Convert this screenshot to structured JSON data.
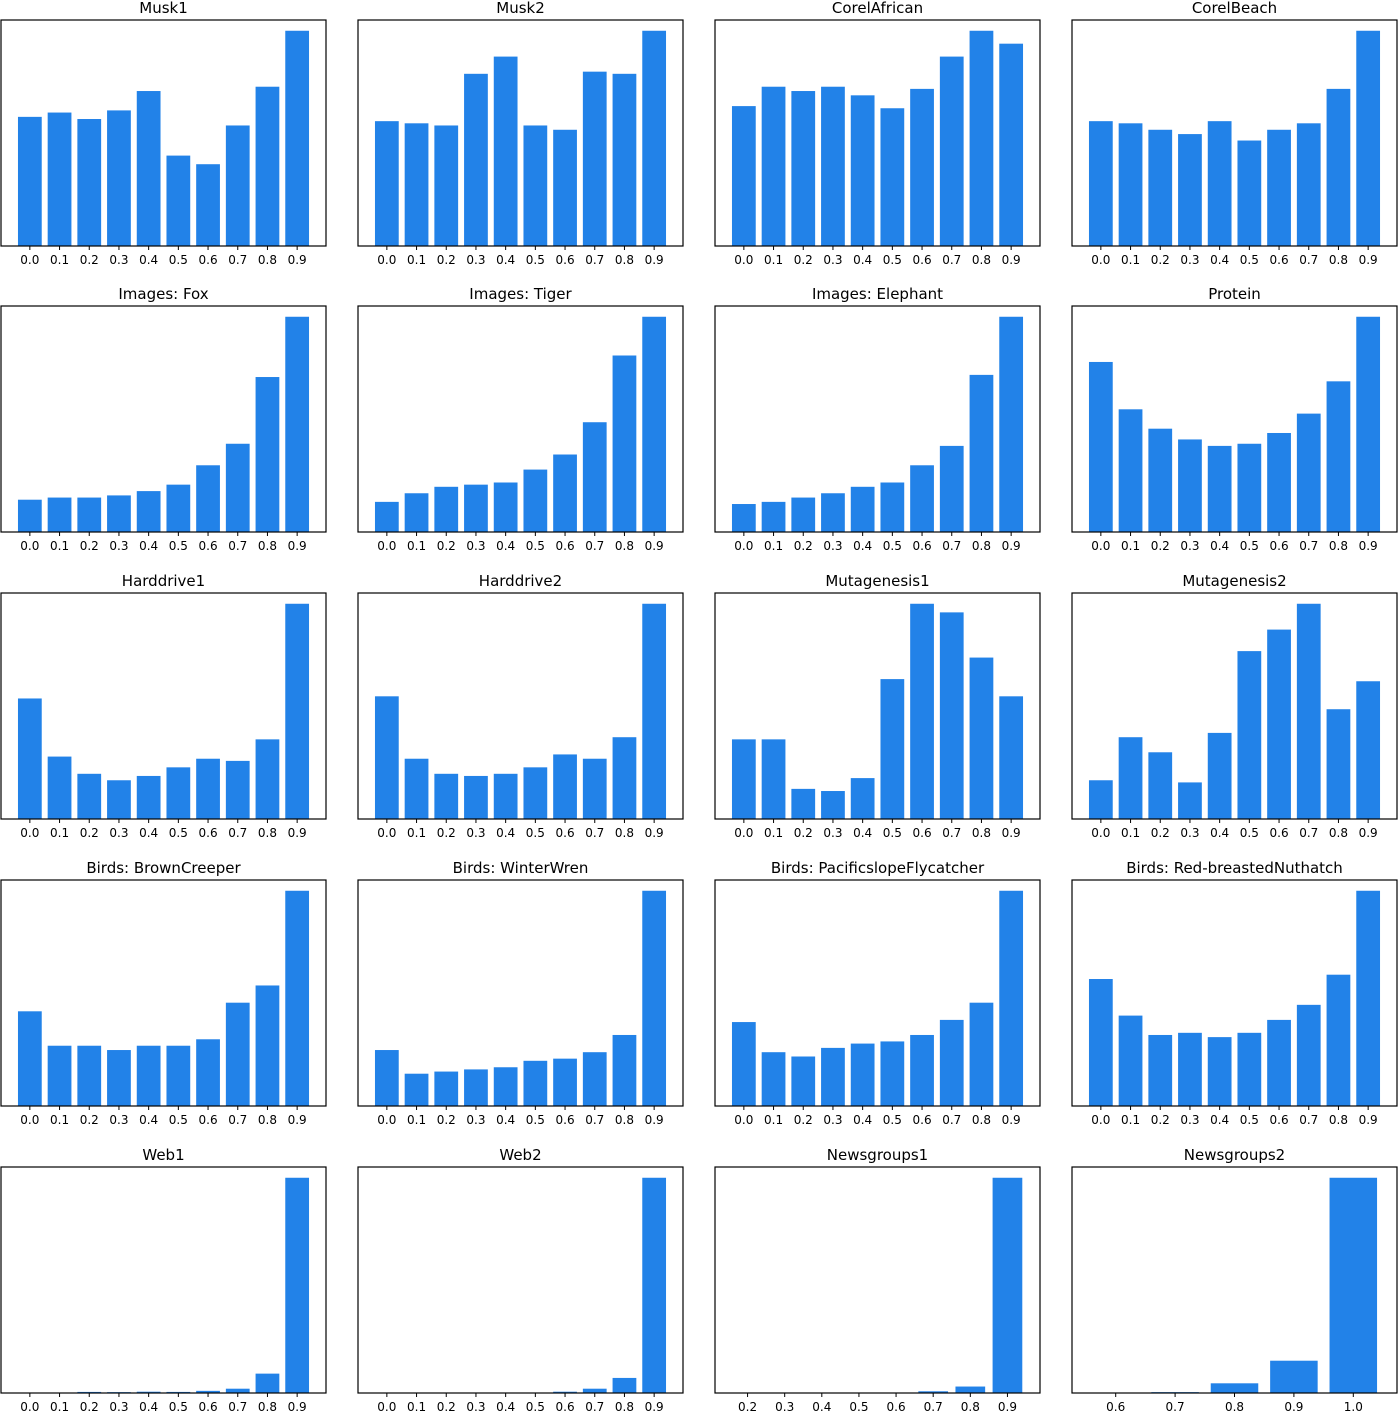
{
  "bar_color": "#2282e8",
  "chart_data": [
    {
      "type": "bar",
      "title": "Musk1",
      "categories": [
        "0.0",
        "0.1",
        "0.2",
        "0.3",
        "0.4",
        "0.5",
        "0.6",
        "0.7",
        "0.8",
        "0.9"
      ],
      "values": [
        0.6,
        0.62,
        0.59,
        0.63,
        0.72,
        0.42,
        0.38,
        0.56,
        0.74,
        1.0
      ],
      "ylim": [
        0,
        1.05
      ]
    },
    {
      "type": "bar",
      "title": "Musk2",
      "categories": [
        "0.0",
        "0.1",
        "0.2",
        "0.3",
        "0.4",
        "0.5",
        "0.6",
        "0.7",
        "0.8",
        "0.9"
      ],
      "values": [
        0.58,
        0.57,
        0.56,
        0.8,
        0.88,
        0.56,
        0.54,
        0.81,
        0.8,
        1.0
      ],
      "ylim": [
        0,
        1.05
      ]
    },
    {
      "type": "bar",
      "title": "CorelAfrican",
      "categories": [
        "0.0",
        "0.1",
        "0.2",
        "0.3",
        "0.4",
        "0.5",
        "0.6",
        "0.7",
        "0.8",
        "0.9"
      ],
      "values": [
        0.65,
        0.74,
        0.72,
        0.74,
        0.7,
        0.64,
        0.73,
        0.88,
        1.0,
        0.94
      ],
      "ylim": [
        0,
        1.05
      ]
    },
    {
      "type": "bar",
      "title": "CorelBeach",
      "categories": [
        "0.0",
        "0.1",
        "0.2",
        "0.3",
        "0.4",
        "0.5",
        "0.6",
        "0.7",
        "0.8",
        "0.9"
      ],
      "values": [
        0.58,
        0.57,
        0.54,
        0.52,
        0.58,
        0.49,
        0.54,
        0.57,
        0.73,
        1.0
      ],
      "ylim": [
        0,
        1.05
      ]
    },
    {
      "type": "bar",
      "title": "Images: Fox",
      "categories": [
        "0.0",
        "0.1",
        "0.2",
        "0.3",
        "0.4",
        "0.5",
        "0.6",
        "0.7",
        "0.8",
        "0.9"
      ],
      "values": [
        0.15,
        0.16,
        0.16,
        0.17,
        0.19,
        0.22,
        0.31,
        0.41,
        0.72,
        1.0
      ],
      "ylim": [
        0,
        1.05
      ]
    },
    {
      "type": "bar",
      "title": "Images: Tiger",
      "categories": [
        "0.0",
        "0.1",
        "0.2",
        "0.3",
        "0.4",
        "0.5",
        "0.6",
        "0.7",
        "0.8",
        "0.9"
      ],
      "values": [
        0.14,
        0.18,
        0.21,
        0.22,
        0.23,
        0.29,
        0.36,
        0.51,
        0.82,
        1.0
      ],
      "ylim": [
        0,
        1.05
      ]
    },
    {
      "type": "bar",
      "title": "Images: Elephant",
      "categories": [
        "0.0",
        "0.1",
        "0.2",
        "0.3",
        "0.4",
        "0.5",
        "0.6",
        "0.7",
        "0.8",
        "0.9"
      ],
      "values": [
        0.13,
        0.14,
        0.16,
        0.18,
        0.21,
        0.23,
        0.31,
        0.4,
        0.73,
        1.0
      ],
      "ylim": [
        0,
        1.05
      ]
    },
    {
      "type": "bar",
      "title": "Protein",
      "categories": [
        "0.0",
        "0.1",
        "0.2",
        "0.3",
        "0.4",
        "0.5",
        "0.6",
        "0.7",
        "0.8",
        "0.9"
      ],
      "values": [
        0.79,
        0.57,
        0.48,
        0.43,
        0.4,
        0.41,
        0.46,
        0.55,
        0.7,
        1.0
      ],
      "ylim": [
        0,
        1.05
      ]
    },
    {
      "type": "bar",
      "title": "Harddrive1",
      "categories": [
        "0.0",
        "0.1",
        "0.2",
        "0.3",
        "0.4",
        "0.5",
        "0.6",
        "0.7",
        "0.8",
        "0.9"
      ],
      "values": [
        0.56,
        0.29,
        0.21,
        0.18,
        0.2,
        0.24,
        0.28,
        0.27,
        0.37,
        1.0
      ],
      "ylim": [
        0,
        1.05
      ]
    },
    {
      "type": "bar",
      "title": "Harddrive2",
      "categories": [
        "0.0",
        "0.1",
        "0.2",
        "0.3",
        "0.4",
        "0.5",
        "0.6",
        "0.7",
        "0.8",
        "0.9"
      ],
      "values": [
        0.57,
        0.28,
        0.21,
        0.2,
        0.21,
        0.24,
        0.3,
        0.28,
        0.38,
        1.0
      ],
      "ylim": [
        0,
        1.05
      ]
    },
    {
      "type": "bar",
      "title": "Mutagenesis1",
      "categories": [
        "0.0",
        "0.1",
        "0.2",
        "0.3",
        "0.4",
        "0.5",
        "0.6",
        "0.7",
        "0.8",
        "0.9"
      ],
      "values": [
        0.37,
        0.37,
        0.14,
        0.13,
        0.19,
        0.65,
        1.0,
        0.96,
        0.75,
        0.57
      ],
      "ylim": [
        0,
        1.05
      ]
    },
    {
      "type": "bar",
      "title": "Mutagenesis2",
      "categories": [
        "0.0",
        "0.1",
        "0.2",
        "0.3",
        "0.4",
        "0.5",
        "0.6",
        "0.7",
        "0.8",
        "0.9"
      ],
      "values": [
        0.18,
        0.38,
        0.31,
        0.17,
        0.4,
        0.78,
        0.88,
        1.0,
        0.51,
        0.64
      ],
      "ylim": [
        0,
        1.05
      ]
    },
    {
      "type": "bar",
      "title": "Birds: BrownCreeper",
      "categories": [
        "0.0",
        "0.1",
        "0.2",
        "0.3",
        "0.4",
        "0.5",
        "0.6",
        "0.7",
        "0.8",
        "0.9"
      ],
      "values": [
        0.44,
        0.28,
        0.28,
        0.26,
        0.28,
        0.28,
        0.31,
        0.48,
        0.56,
        1.0
      ],
      "ylim": [
        0,
        1.05
      ]
    },
    {
      "type": "bar",
      "title": "Birds: WinterWren",
      "categories": [
        "0.0",
        "0.1",
        "0.2",
        "0.3",
        "0.4",
        "0.5",
        "0.6",
        "0.7",
        "0.8",
        "0.9"
      ],
      "values": [
        0.26,
        0.15,
        0.16,
        0.17,
        0.18,
        0.21,
        0.22,
        0.25,
        0.33,
        1.0
      ],
      "ylim": [
        0,
        1.05
      ]
    },
    {
      "type": "bar",
      "title": "Birds: PacificslopeFlycatcher",
      "categories": [
        "0.0",
        "0.1",
        "0.2",
        "0.3",
        "0.4",
        "0.5",
        "0.6",
        "0.7",
        "0.8",
        "0.9"
      ],
      "values": [
        0.39,
        0.25,
        0.23,
        0.27,
        0.29,
        0.3,
        0.33,
        0.4,
        0.48,
        1.0
      ],
      "ylim": [
        0,
        1.05
      ]
    },
    {
      "type": "bar",
      "title": "Birds: Red-breastedNuthatch",
      "categories": [
        "0.0",
        "0.1",
        "0.2",
        "0.3",
        "0.4",
        "0.5",
        "0.6",
        "0.7",
        "0.8",
        "0.9"
      ],
      "values": [
        0.59,
        0.42,
        0.33,
        0.34,
        0.32,
        0.34,
        0.4,
        0.47,
        0.61,
        1.0
      ],
      "ylim": [
        0,
        1.05
      ]
    },
    {
      "type": "bar",
      "title": "Web1",
      "categories": [
        "0.0",
        "0.1",
        "0.2",
        "0.3",
        "0.4",
        "0.5",
        "0.6",
        "0.7",
        "0.8",
        "0.9"
      ],
      "values": [
        0.001,
        0.001,
        0.005,
        0.004,
        0.006,
        0.005,
        0.01,
        0.02,
        0.09,
        1.0
      ],
      "ylim": [
        0,
        1.05
      ]
    },
    {
      "type": "bar",
      "title": "Web2",
      "categories": [
        "0.0",
        "0.1",
        "0.2",
        "0.3",
        "0.4",
        "0.5",
        "0.6",
        "0.7",
        "0.8",
        "0.9"
      ],
      "values": [
        0.001,
        0.001,
        0.002,
        0.002,
        0.002,
        0.002,
        0.006,
        0.02,
        0.07,
        1.0
      ],
      "ylim": [
        0,
        1.05
      ]
    },
    {
      "type": "bar",
      "title": "Newsgroups1",
      "categories": [
        "0.2",
        "0.3",
        "0.4",
        "0.5",
        "0.6",
        "0.7",
        "0.8",
        "0.9"
      ],
      "values": [
        0.0,
        0.0,
        0.0,
        0.0,
        0.002,
        0.008,
        0.03,
        1.0
      ],
      "ylim": [
        0,
        1.05
      ]
    },
    {
      "type": "bar",
      "title": "Newsgroups2",
      "categories": [
        "0.6",
        "0.7",
        "0.8",
        "0.9",
        "1.0"
      ],
      "values": [
        0.0,
        0.004,
        0.045,
        0.15,
        1.0
      ],
      "ylim": [
        0,
        1.05
      ]
    },
    {
      "type": "bar",
      "title": "",
      "categories": [],
      "values": [],
      "ylim": [
        0,
        1.05
      ],
      "note_only_axis_positions": true
    }
  ]
}
